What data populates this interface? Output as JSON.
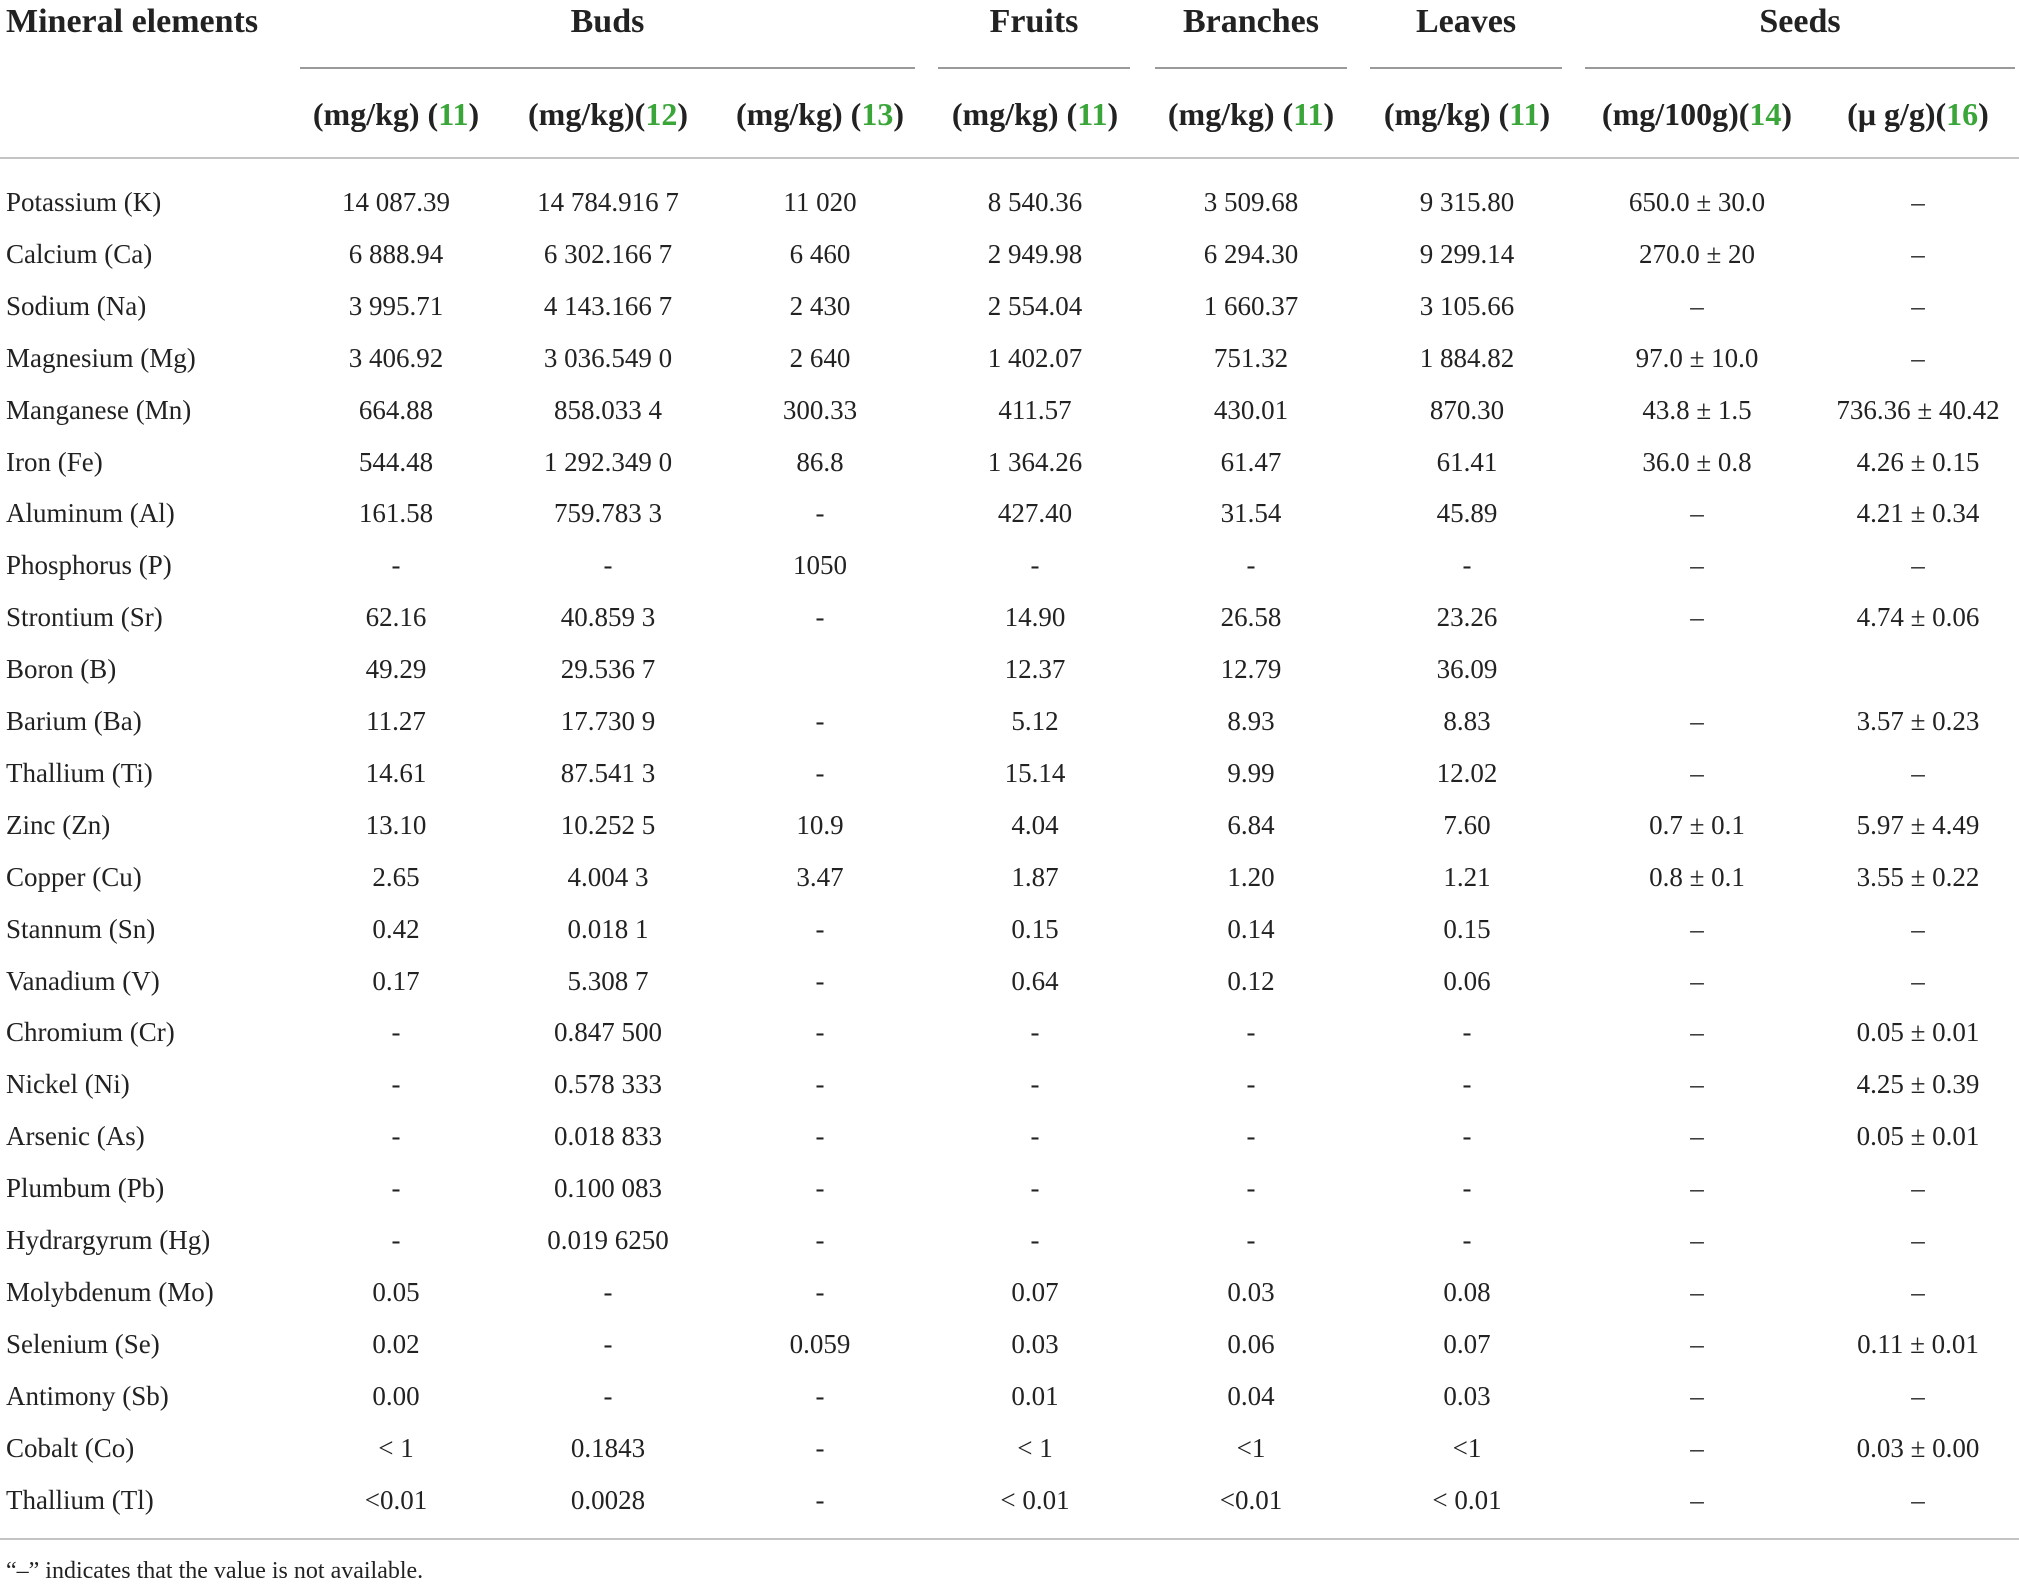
{
  "table": {
    "group_headers": [
      "Mineral elements",
      "Buds",
      "Fruits",
      "Branches",
      "Leaves",
      "Seeds"
    ],
    "unit_headers": [
      {
        "unit": "(mg/kg)",
        "ref": "11",
        "sep": " "
      },
      {
        "unit": "(mg/kg)",
        "ref": "12",
        "sep": ""
      },
      {
        "unit": "(mg/kg)",
        "ref": "13",
        "sep": " "
      },
      {
        "unit": "(mg/kg)",
        "ref": "11",
        "sep": " "
      },
      {
        "unit": "(mg/kg)",
        "ref": "11",
        "sep": " "
      },
      {
        "unit": "(mg/kg)",
        "ref": "11",
        "sep": " "
      },
      {
        "unit": "(mg/100g)",
        "ref": "14",
        "sep": ""
      },
      {
        "unit": "(μ g/g)",
        "ref": "16",
        "sep": ""
      }
    ],
    "rows": [
      [
        "Potassium (K)",
        "14 087.39",
        "14 784.916 7",
        "11 020",
        "8 540.36",
        "3 509.68",
        "9 315.80",
        "650.0 ± 30.0",
        "–"
      ],
      [
        "Calcium (Ca)",
        "6 888.94",
        "6 302.166 7",
        "6 460",
        "2 949.98",
        "6 294.30",
        "9 299.14",
        "270.0 ± 20",
        "–"
      ],
      [
        "Sodium (Na)",
        "3 995.71",
        "4 143.166 7",
        "2 430",
        "2 554.04",
        "1 660.37",
        "3 105.66",
        "–",
        "–"
      ],
      [
        "Magnesium (Mg)",
        "3 406.92",
        "3 036.549 0",
        "2 640",
        "1 402.07",
        "751.32",
        "1 884.82",
        "97.0 ± 10.0",
        "–"
      ],
      [
        "Manganese (Mn)",
        "664.88",
        "858.033 4",
        "300.33",
        "411.57",
        "430.01",
        "870.30",
        "43.8 ± 1.5",
        "736.36 ± 40.42"
      ],
      [
        "Iron (Fe)",
        "544.48",
        "1 292.349 0",
        "86.8",
        "1 364.26",
        "61.47",
        "61.41",
        "36.0 ± 0.8",
        "4.26 ± 0.15"
      ],
      [
        "Aluminum (Al)",
        "161.58",
        "759.783 3",
        "-",
        "427.40",
        "31.54",
        "45.89",
        "–",
        "4.21 ± 0.34"
      ],
      [
        "Phosphorus (P)",
        "-",
        "-",
        "1050",
        "-",
        "-",
        "-",
        "–",
        "–"
      ],
      [
        "Strontium (Sr)",
        "62.16",
        "40.859 3",
        "-",
        "14.90",
        "26.58",
        "23.26",
        "–",
        "4.74 ± 0.06"
      ],
      [
        "Boron (B)",
        "49.29",
        "29.536 7",
        "",
        "12.37",
        "12.79",
        "36.09",
        "",
        ""
      ],
      [
        "Barium (Ba)",
        "11.27",
        "17.730 9",
        "-",
        "5.12",
        "8.93",
        "8.83",
        "–",
        "3.57 ± 0.23"
      ],
      [
        "Thallium (Ti)",
        "14.61",
        "87.541 3",
        "-",
        "15.14",
        "9.99",
        "12.02",
        "–",
        "–"
      ],
      [
        "Zinc (Zn)",
        "13.10",
        "10.252 5",
        "10.9",
        "4.04",
        "6.84",
        "7.60",
        "0.7 ± 0.1",
        "5.97 ± 4.49"
      ],
      [
        "Copper (Cu)",
        "2.65",
        "4.004 3",
        "3.47",
        "1.87",
        "1.20",
        "1.21",
        "0.8 ± 0.1",
        "3.55 ± 0.22"
      ],
      [
        "Stannum (Sn)",
        "0.42",
        "0.018 1",
        "-",
        "0.15",
        "0.14",
        "0.15",
        "–",
        "–"
      ],
      [
        "Vanadium (V)",
        "0.17",
        "5.308 7",
        "-",
        "0.64",
        "0.12",
        "0.06",
        "–",
        "–"
      ],
      [
        "Chromium (Cr)",
        "-",
        "0.847 500",
        "-",
        "-",
        "-",
        "-",
        "–",
        "0.05 ± 0.01"
      ],
      [
        "Nickel (Ni)",
        "-",
        "0.578 333",
        "-",
        "-",
        "-",
        "-",
        "–",
        "4.25 ± 0.39"
      ],
      [
        "Arsenic (As)",
        "-",
        "0.018 833",
        "-",
        "-",
        "-",
        "-",
        "–",
        "0.05 ± 0.01"
      ],
      [
        "Plumbum (Pb)",
        "-",
        "0.100 083",
        "-",
        "-",
        "-",
        "-",
        "–",
        "–"
      ],
      [
        "Hydrargyrum (Hg)",
        "-",
        "0.019 6250",
        "-",
        "-",
        "-",
        "-",
        "–",
        "–"
      ],
      [
        "Molybdenum (Mo)",
        "0.05",
        "-",
        "-",
        "0.07",
        "0.03",
        "0.08",
        "–",
        "–"
      ],
      [
        "Selenium (Se)",
        "0.02",
        "-",
        "0.059",
        "0.03",
        "0.06",
        "0.07",
        "–",
        "0.11 ± 0.01"
      ],
      [
        "Antimony (Sb)",
        "0.00",
        "-",
        "-",
        "0.01",
        "0.04",
        "0.03",
        "–",
        "–"
      ],
      [
        "Cobalt (Co)",
        "< 1",
        "0.1843",
        "-",
        "< 1",
        "<1",
        "<1",
        "–",
        "0.03 ± 0.00"
      ],
      [
        "Thallium (Tl)",
        "<0.01",
        "0.0028",
        "-",
        "< 0.01",
        "<0.01",
        "< 0.01",
        "–",
        "–"
      ]
    ],
    "footnote": "“–” indicates that the value is not available."
  }
}
